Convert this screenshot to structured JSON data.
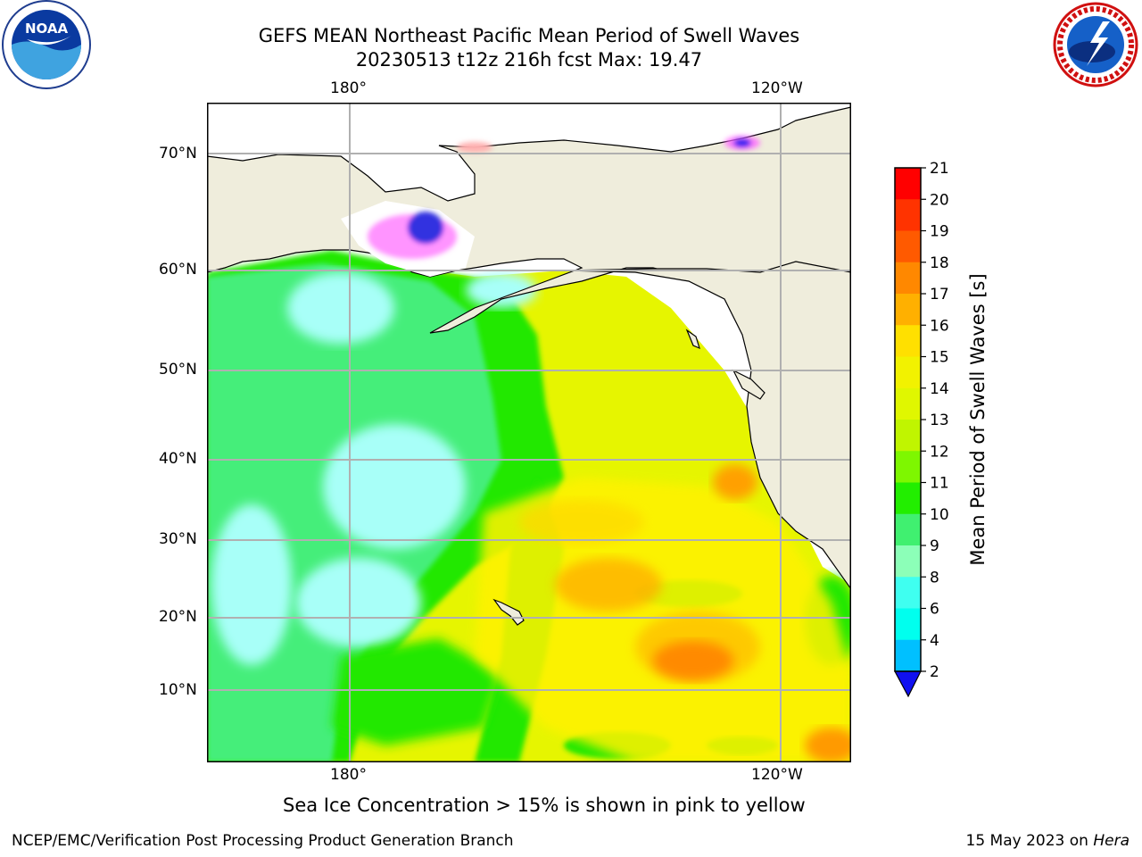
{
  "header": {
    "title_line1": "GEFS MEAN Northeast Pacific Mean Period of Swell Waves",
    "title_line2": "20230513 t12z 216h fcst   Max: 19.47"
  },
  "logos": {
    "left_icon": "noaa-logo",
    "left_text": "NOAA",
    "right_icon": "nws-logo",
    "right_text": "NATIONAL WEATHER SERVICE"
  },
  "map": {
    "lon_labels_top": [
      "180°",
      "120°W"
    ],
    "lon_labels_bottom": [
      "180°",
      "120°W"
    ],
    "lat_labels": [
      "70°N",
      "60°N",
      "50°N",
      "40°N",
      "30°N",
      "20°N",
      "10°N"
    ],
    "land_color": "#efeddc",
    "grid_color": "#b0b0b0"
  },
  "colorbar": {
    "label": "Mean Period of Swell Waves [s]",
    "ticks": [
      "21",
      "20",
      "19",
      "18",
      "17",
      "16",
      "15",
      "14",
      "13",
      "12",
      "11",
      "10",
      "9",
      "8",
      "6",
      "4",
      "2"
    ],
    "colors": [
      "#ff0000",
      "#ff3300",
      "#ff5a00",
      "#ff8800",
      "#ffb000",
      "#ffe000",
      "#f2f200",
      "#e0f700",
      "#c0f500",
      "#7ef700",
      "#22ee00",
      "#40f070",
      "#8cffb8",
      "#3ffff0",
      "#00ffee",
      "#00c0ff",
      "#0070ff"
    ],
    "extend_color": "#1010f0"
  },
  "caption": "Sea Ice Concentration > 15% is shown in pink to yellow",
  "footer": {
    "left": "NCEP/EMC/Verification Post Processing Product Generation Branch",
    "right_prefix": "15 May 2023 on ",
    "right_italic": "Hera"
  }
}
